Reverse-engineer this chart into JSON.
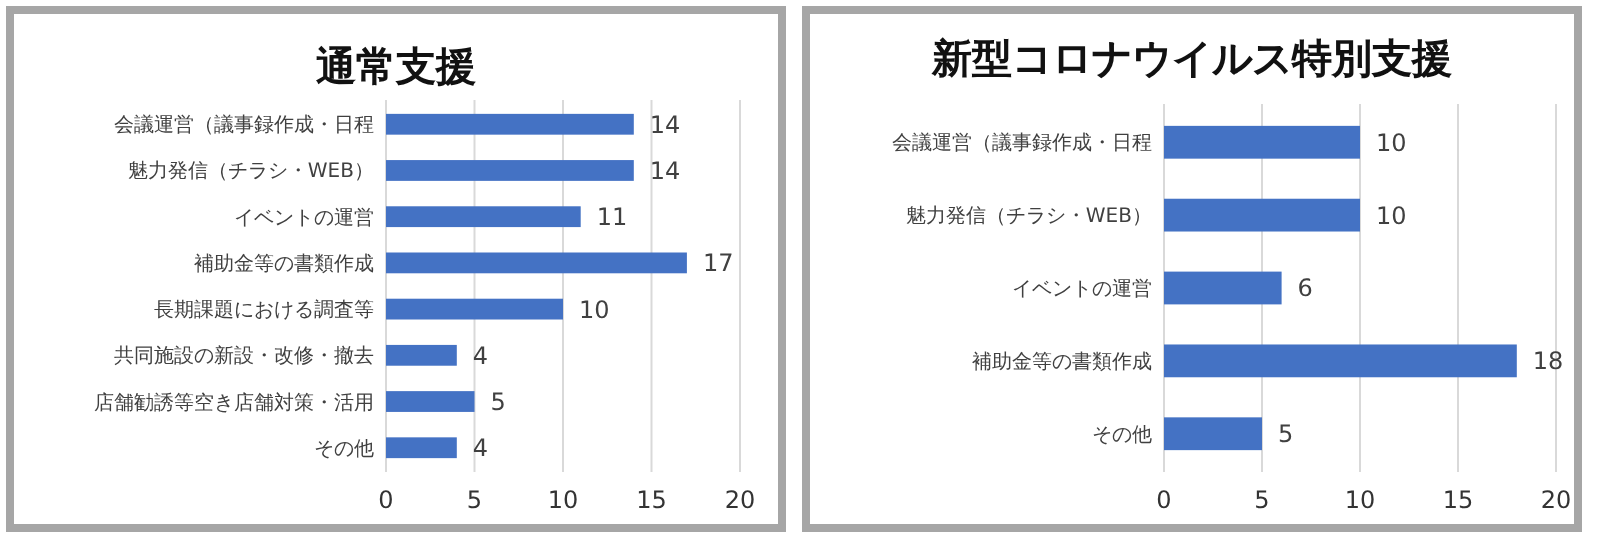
{
  "chart_data": [
    {
      "type": "bar",
      "orientation": "horizontal",
      "title": "通常支援",
      "categories": [
        "会議運営（議事録作成・日程",
        "魅力発信（チラシ・WEB）",
        "イベントの運営",
        "補助金等の書類作成",
        "長期課題における調査等",
        "共同施設の新設・改修・撤去",
        "店舗勧誘等空き店舗対策・活用",
        "その他"
      ],
      "values": [
        14,
        14,
        11,
        17,
        10,
        4,
        5,
        4
      ],
      "color": "#4472c4",
      "xlim": [
        0,
        20
      ],
      "xticks": [
        0,
        5,
        10,
        15,
        20
      ],
      "grid": "x",
      "data_labels": true
    },
    {
      "type": "bar",
      "orientation": "horizontal",
      "title": "新型コロナウイルス特別支援",
      "categories": [
        "会議運営（議事録作成・日程",
        "魅力発信（チラシ・WEB）",
        "イベントの運営",
        "補助金等の書類作成",
        "その他"
      ],
      "values": [
        10,
        10,
        6,
        18,
        5
      ],
      "color": "#4472c4",
      "xlim": [
        0,
        20
      ],
      "xticks": [
        0,
        5,
        10,
        15,
        20
      ],
      "grid": "x",
      "data_labels": true
    }
  ]
}
